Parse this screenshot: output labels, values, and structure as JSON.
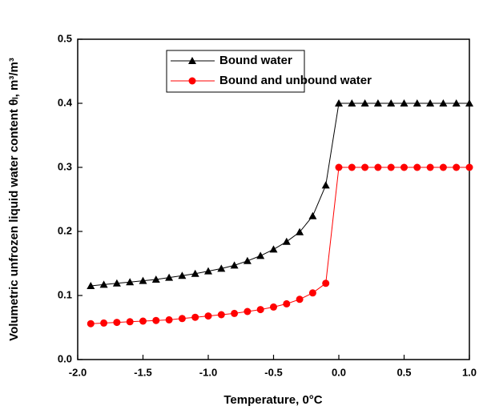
{
  "chart_data": {
    "type": "line",
    "xlabel": "Temperature, 0°C",
    "ylabel": "Volumetric unfrozen liquid water content θₗ, m³/m³",
    "x": [
      -1.9,
      -1.8,
      -1.7,
      -1.6,
      -1.5,
      -1.4,
      -1.3,
      -1.2,
      -1.1,
      -1.0,
      -0.9,
      -0.8,
      -0.7,
      -0.6,
      -0.5,
      -0.4,
      -0.3,
      -0.2,
      -0.1,
      0.0,
      0.1,
      0.2,
      0.3,
      0.4,
      0.5,
      0.6,
      0.7,
      0.8,
      0.9,
      1.0
    ],
    "series": [
      {
        "name": "Bound water",
        "color": "#000000",
        "marker": "triangle",
        "values": [
          0.115,
          0.117,
          0.119,
          0.121,
          0.123,
          0.125,
          0.128,
          0.131,
          0.134,
          0.138,
          0.142,
          0.147,
          0.154,
          0.162,
          0.172,
          0.184,
          0.199,
          0.224,
          0.272,
          0.4,
          0.4,
          0.4,
          0.4,
          0.4,
          0.4,
          0.4,
          0.4,
          0.4,
          0.4,
          0.4
        ]
      },
      {
        "name": "Bound and unbound water",
        "color": "#ff0000",
        "marker": "circle",
        "values": [
          0.056,
          0.057,
          0.058,
          0.059,
          0.06,
          0.061,
          0.062,
          0.064,
          0.066,
          0.068,
          0.07,
          0.072,
          0.075,
          0.078,
          0.082,
          0.087,
          0.094,
          0.104,
          0.119,
          0.3,
          0.3,
          0.3,
          0.3,
          0.3,
          0.3,
          0.3,
          0.3,
          0.3,
          0.3,
          0.3
        ]
      }
    ],
    "xlim": [
      -2.0,
      1.0
    ],
    "xticks": [
      {
        "value": -2.0,
        "label": "-2.0"
      },
      -1.5,
      {
        "value": -1.0,
        "label": "-1.0"
      },
      -0.5,
      {
        "value": 0.0,
        "label": "0.0"
      },
      0.5,
      {
        "value": 1.0,
        "label": "1.0"
      }
    ],
    "ylim": [
      0.0,
      0.5
    ],
    "yticks": [
      {
        "value": 0.0,
        "label": "0.0"
      },
      0.1,
      0.2,
      0.3,
      0.4,
      0.5
    ],
    "legend": "upper-left"
  }
}
